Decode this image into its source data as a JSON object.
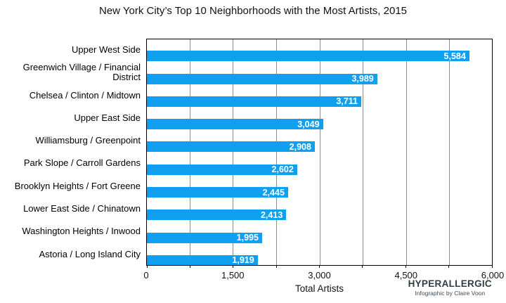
{
  "chart_data": {
    "type": "bar",
    "orientation": "horizontal",
    "title": "New York City’s Top 10 Neighborhoods with the Most Artists, 2015",
    "xlabel": "Total Artists",
    "ylabel": "",
    "xlim": [
      0,
      6000
    ],
    "grid": true,
    "gridline_interval": 750,
    "major_tick_interval": 1500,
    "bar_color": "#10a0f0",
    "categories": [
      "Upper West Side",
      "Greenwich Village / Financial District",
      "Chelsea / Clinton / Midtown",
      "Upper East Side",
      "Williamsburg / Greenpoint",
      "Park Slope / Carroll Gardens",
      "Brooklyn Heights / Fort Greene",
      "Lower East Side / Chinatown",
      "Washington Heights / Inwood",
      "Astoria / Long Island City"
    ],
    "values": [
      5584,
      3989,
      3711,
      3049,
      2908,
      2602,
      2445,
      2413,
      1995,
      1919
    ],
    "value_labels": [
      "5,584",
      "3,989",
      "3,711",
      "3,049",
      "2,908",
      "2,602",
      "2,445",
      "2,413",
      "1,995",
      "1,919"
    ],
    "x_major_ticks": [
      {
        "label": "0",
        "value": 0
      },
      {
        "label": "1,500",
        "value": 1500
      },
      {
        "label": "3,000",
        "value": 3000
      },
      {
        "label": "4,500",
        "value": 4500
      },
      {
        "label": "6,000",
        "value": 6000
      }
    ]
  },
  "credit": {
    "brand": "HYPERALLERGIC",
    "byline": "Infographic by Claire Voon"
  },
  "colors": {
    "bar": "#10a0f0",
    "gridline": "#8e8e8e",
    "axis": "#000000",
    "value_label_text": "#ffffff",
    "credit_brand": "#2f3d47"
  }
}
